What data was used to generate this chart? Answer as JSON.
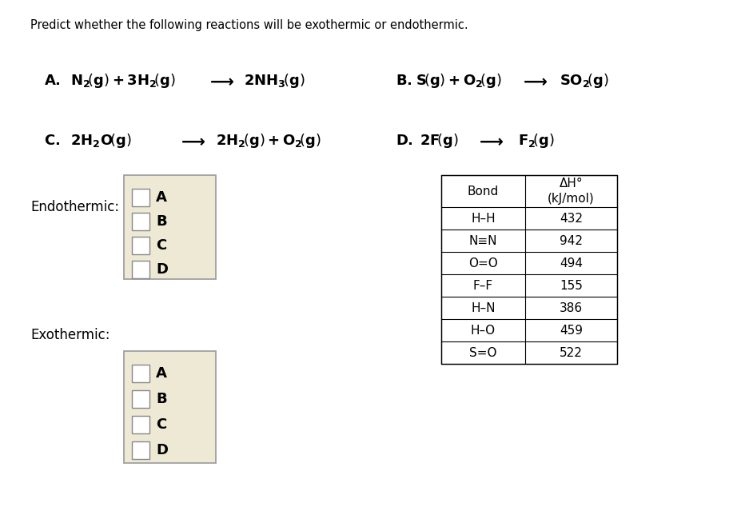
{
  "title": "Predict whether the following reactions will be exothermic or endothermic.",
  "title_fontsize": 10.5,
  "background_color": "#ffffff",
  "bond_table": {
    "headers": [
      "Bond",
      "ΔH°\n(kJ/mol)"
    ],
    "rows": [
      [
        "H–H",
        "432"
      ],
      [
        "N≡N",
        "942"
      ],
      [
        "O=O",
        "494"
      ],
      [
        "F–F",
        "155"
      ],
      [
        "H–N",
        "386"
      ],
      [
        "H–O",
        "459"
      ],
      [
        "S=O",
        "522"
      ]
    ]
  },
  "checkbox_options": [
    "A",
    "B",
    "C",
    "D"
  ],
  "endothermic_label": "Endothermic:",
  "exothermic_label": "Exothermic:",
  "reaction_fontsize": 13,
  "label_fontsize": 12,
  "table_fontsize": 11,
  "checkbox_label_fontsize": 13
}
